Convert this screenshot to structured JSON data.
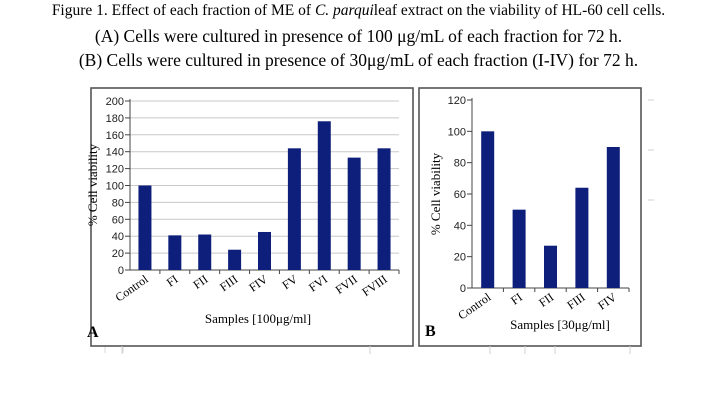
{
  "figure": {
    "caption_prefix": "Figure 1. Effect of each fraction of ME of ",
    "caption_italic": "C. parqui",
    "caption_suffix": "leaf extract on the viability of HL-60 cell cells.",
    "line_a": "(A) Cells were cultured in presence of 100 μg/mL of each fraction for 72 h.",
    "line_b": "(B) Cells were cultured in presence of 30μg/mL of each fraction (I-IV) for 72 h."
  },
  "colors": {
    "bar": "#0d1f7a",
    "panel_border": "#555555",
    "grid": "#c8c8c8",
    "axis": "#444444"
  },
  "chart_data": [
    {
      "type": "bar",
      "panel_label": "A",
      "categories": [
        "Control",
        "FI",
        "FII",
        "FIII",
        "FIV",
        "FV",
        "FVI",
        "FVII",
        "FVIII"
      ],
      "values": [
        100,
        41,
        42,
        24,
        45,
        144,
        176,
        133,
        144
      ],
      "xlabel": "Samples [100μg/ml]",
      "ylabel": "% Cell viability",
      "ylim": [
        0,
        200
      ],
      "yticks": [
        0,
        20,
        40,
        60,
        80,
        100,
        120,
        140,
        160,
        180,
        200
      ],
      "grid": true
    },
    {
      "type": "bar",
      "panel_label": "B",
      "categories": [
        "Control",
        "FI",
        "FII",
        "FIII",
        "FIV"
      ],
      "values": [
        100,
        50,
        27,
        64,
        90
      ],
      "xlabel": "Samples [30μg/ml]",
      "ylabel": "% Cell viability",
      "ylim": [
        0,
        120
      ],
      "yticks": [
        0,
        20,
        40,
        60,
        80,
        100,
        120
      ],
      "grid": false
    }
  ]
}
